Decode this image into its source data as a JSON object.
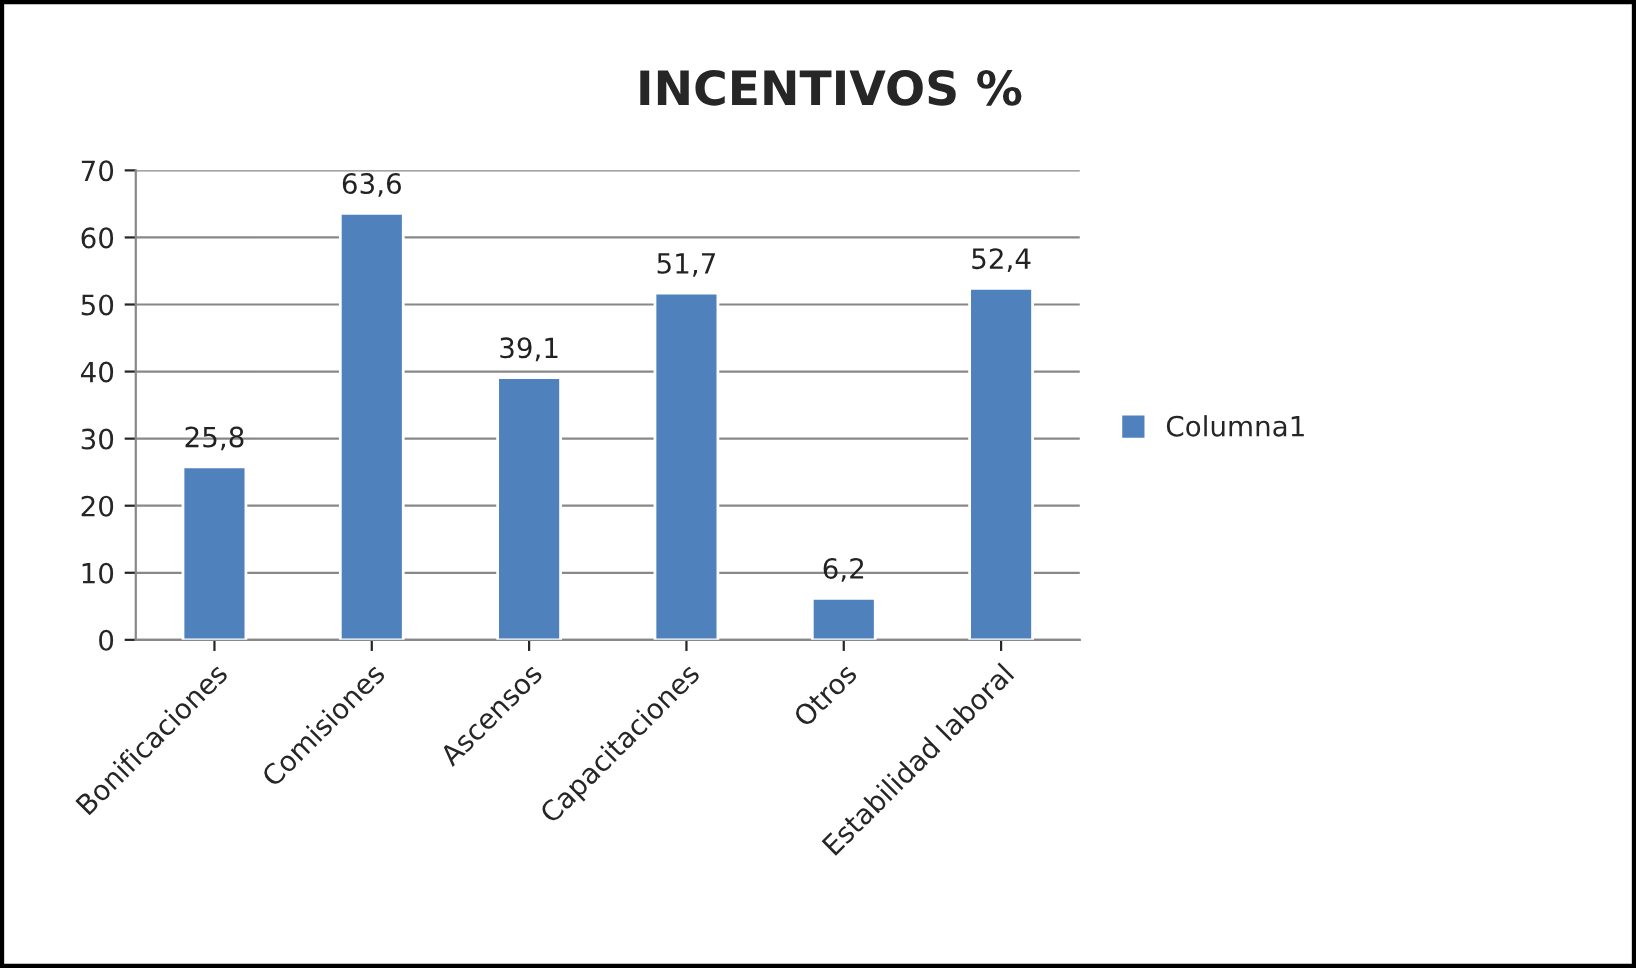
{
  "chart_data": {
    "type": "bar",
    "title": "INCENTIVOS %",
    "categories": [
      "Bonificaciones",
      "Comisiones",
      "Ascensos",
      "Capacitaciones",
      "Otros",
      "Estabilidad laboral"
    ],
    "series": [
      {
        "name": "Columna1",
        "color": "#4f81bd",
        "values": [
          25.8,
          63.6,
          39.1,
          51.7,
          6.2,
          52.4
        ],
        "value_labels": [
          "25,8",
          "63,6",
          "39,1",
          "51,7",
          "6,2",
          "52,4"
        ]
      }
    ],
    "ylim": [
      0,
      70
    ],
    "yticks": [
      0,
      10,
      20,
      30,
      40,
      50,
      60,
      70
    ],
    "grid": "y",
    "legend": "right"
  }
}
